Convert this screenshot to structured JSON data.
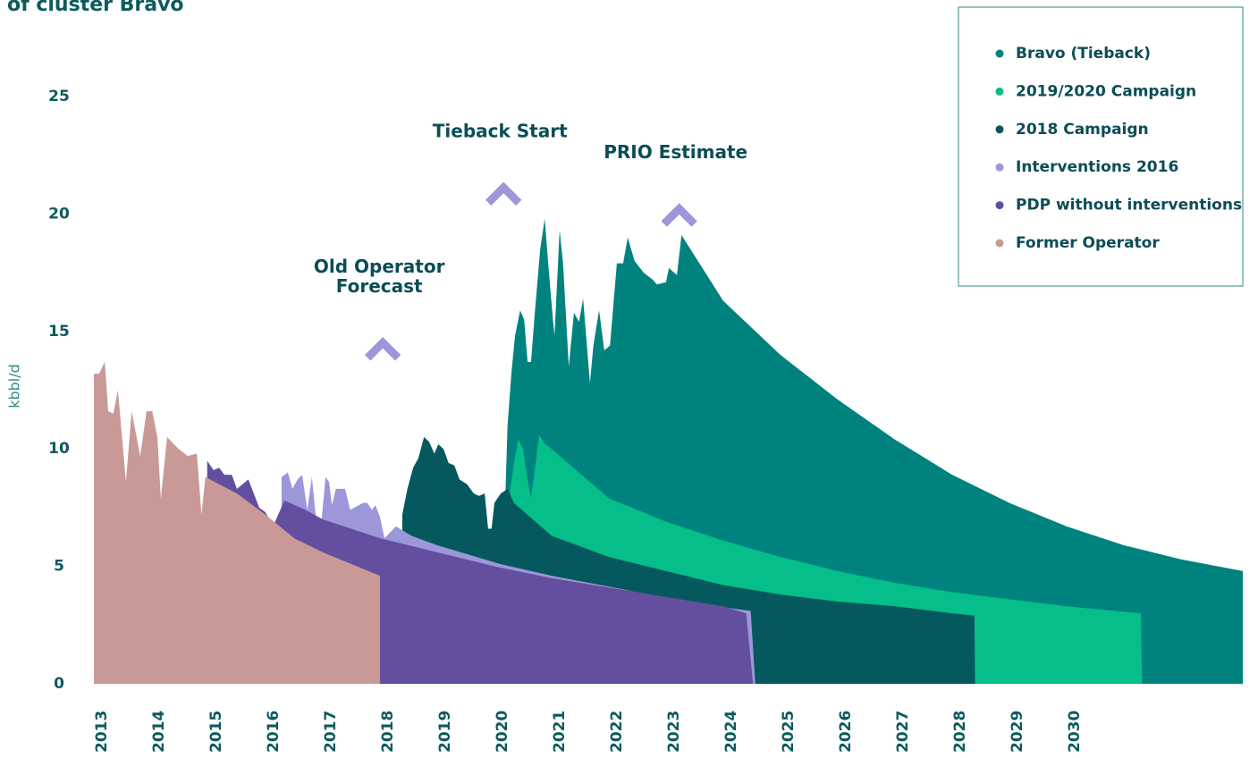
{
  "chart_data": {
    "type": "area",
    "title": "of cluster Bravo",
    "y_label": "kbbl/d",
    "xlim": [
      2013,
      2033.08
    ],
    "ylim": [
      0,
      25
    ],
    "xticks": [
      2013,
      2014,
      2015,
      2016,
      2017,
      2018,
      2019,
      2020,
      2021,
      2022,
      2023,
      2024,
      2025,
      2026,
      2027,
      2028,
      2029,
      2030
    ],
    "yticks": [
      0,
      5,
      10,
      15,
      20,
      25
    ],
    "grid": false,
    "legend": "upper right",
    "series": [
      {
        "name": "Bravo (Tieback)",
        "color": "#00827f",
        "x": [
          2020.19,
          2020.23,
          2020.3,
          2020.36,
          2020.45,
          2020.52,
          2020.58,
          2020.64,
          2020.7,
          2020.8,
          2020.88,
          2020.94,
          2021.02,
          2021.05,
          2021.14,
          2021.2,
          2021.3,
          2021.39,
          2021.48,
          2021.55,
          2021.61,
          2021.67,
          2021.73,
          2021.83,
          2021.92,
          2022.02,
          2022.14,
          2022.25,
          2022.33,
          2022.45,
          2022.61,
          2022.77,
          2022.84,
          2023.0,
          2023.05,
          2023.19,
          2023.27,
          2024,
          2025,
          2026,
          2027,
          2028,
          2029,
          2030,
          2031,
          2032,
          2033.08
        ],
        "values": [
          7.9,
          11,
          13.3,
          14.8,
          15.9,
          15.5,
          13.7,
          13.7,
          15.6,
          18.5,
          19.8,
          17.9,
          15.6,
          14.8,
          19.3,
          17.9,
          13.5,
          15.8,
          15.4,
          16.4,
          14.6,
          12.8,
          14.4,
          15.9,
          14.2,
          14.4,
          17.9,
          17.9,
          19.0,
          18.0,
          17.5,
          17.2,
          17.0,
          17.1,
          17.7,
          17.4,
          19.1,
          16.3,
          14.0,
          12.1,
          10.4,
          8.9,
          7.7,
          6.7,
          5.9,
          5.3,
          4.8
        ]
      },
      {
        "name": "2019/2020 Campaign",
        "color": "#05be8a",
        "x": [
          2020.27,
          2020.34,
          2020.42,
          2020.5,
          2020.58,
          2020.64,
          2020.7,
          2020.78,
          2020.89,
          2021,
          2022,
          2023,
          2024,
          2025,
          2026,
          2027,
          2028,
          2029,
          2030,
          2031.3,
          2031.32
        ],
        "values": [
          8.1,
          9.4,
          10.4,
          10.0,
          8.7,
          7.9,
          9.0,
          10.6,
          10.2,
          10.0,
          7.9,
          6.9,
          6.1,
          5.4,
          4.8,
          4.3,
          3.9,
          3.6,
          3.3,
          3.0,
          0
        ]
      },
      {
        "name": "2018 Campaign",
        "color": "#04585e",
        "x": [
          2018.39,
          2018.48,
          2018.58,
          2018.67,
          2018.77,
          2018.86,
          2018.95,
          2019.02,
          2019.11,
          2019.2,
          2019.3,
          2019.39,
          2019.52,
          2019.64,
          2019.73,
          2019.83,
          2019.89,
          2019.95,
          2020.0,
          2020.11,
          2020.23,
          2020.34,
          2021,
          2022,
          2023,
          2024,
          2025,
          2026,
          2027,
          2028,
          2028.39,
          2028.4
        ],
        "values": [
          7.2,
          8.3,
          9.2,
          9.6,
          10.5,
          10.3,
          9.8,
          10.2,
          10.0,
          9.4,
          9.3,
          8.7,
          8.5,
          8.1,
          8.0,
          8.1,
          6.6,
          6.6,
          7.7,
          8.1,
          8.3,
          7.7,
          6.3,
          5.4,
          4.8,
          4.2,
          3.8,
          3.5,
          3.3,
          3.0,
          2.9,
          0
        ]
      },
      {
        "name": "Interventions 2016",
        "color": "#9b97d9",
        "x": [
          2016.28,
          2016.39,
          2016.47,
          2016.56,
          2016.64,
          2016.73,
          2016.81,
          2016.88,
          2016.94,
          2016.98,
          2017.05,
          2017.11,
          2017.16,
          2017.23,
          2017.39,
          2017.48,
          2017.7,
          2017.78,
          2017.86,
          2017.92,
          2018.0,
          2018.08,
          2018.28,
          2018.55,
          2019,
          2020.1,
          2021,
          2022.3,
          2023,
          2024.48,
          2024.56
        ],
        "values": [
          8.8,
          9.0,
          8.3,
          8.7,
          8.9,
          7.4,
          8.8,
          7.1,
          6.0,
          7.0,
          8.8,
          8.6,
          7.6,
          8.3,
          8.3,
          7.4,
          7.7,
          7.7,
          7.4,
          7.6,
          7.1,
          6.2,
          6.7,
          6.3,
          5.9,
          5.1,
          4.6,
          4.0,
          3.6,
          3.1,
          0
        ]
      },
      {
        "name": "PDP without interventions",
        "color": "#644ea0",
        "x": [
          2014.98,
          2015.09,
          2015.19,
          2015.28,
          2015.41,
          2015.5,
          2015.7,
          2015.89,
          2016.0,
          2016.13,
          2016.33,
          2016.7,
          2017,
          2018,
          2019,
          2020,
          2021,
          2022,
          2023,
          2024,
          2024.4,
          2024.52
        ],
        "values": [
          9.5,
          9.1,
          9.2,
          8.9,
          8.9,
          8.3,
          8.7,
          7.5,
          7.3,
          6.7,
          7.8,
          7.4,
          7.0,
          6.2,
          5.6,
          5.0,
          4.5,
          4.1,
          3.7,
          3.3,
          3.0,
          0
        ]
      },
      {
        "name": "Former Operator",
        "color": "#c99997",
        "x": [
          2013.0,
          2013.09,
          2013.19,
          2013.25,
          2013.34,
          2013.42,
          2013.56,
          2013.66,
          2013.81,
          2013.92,
          2014.02,
          2014.11,
          2014.17,
          2014.28,
          2014.48,
          2014.64,
          2014.8,
          2014.88,
          2014.95,
          2015.5,
          2016,
          2016.5,
          2017,
          2017.5,
          2018
        ],
        "values": [
          13.2,
          13.2,
          13.7,
          11.6,
          11.5,
          12.5,
          8.6,
          11.6,
          9.7,
          11.6,
          11.6,
          10.5,
          7.9,
          10.5,
          10.0,
          9.7,
          9.8,
          7.2,
          8.8,
          8.1,
          7.2,
          6.2,
          5.6,
          5.1,
          4.6
        ]
      }
    ],
    "annotations": [
      {
        "lines": [
          "Old Operator",
          "Forecast"
        ],
        "x": 2018.05,
        "y": 14.6
      },
      {
        "lines": [
          "Tieback Start"
        ],
        "x": 2020.16,
        "y": 21.2
      },
      {
        "lines": [
          "PRIO Estimate"
        ],
        "x": 2023.23,
        "y": 20.3
      }
    ]
  }
}
